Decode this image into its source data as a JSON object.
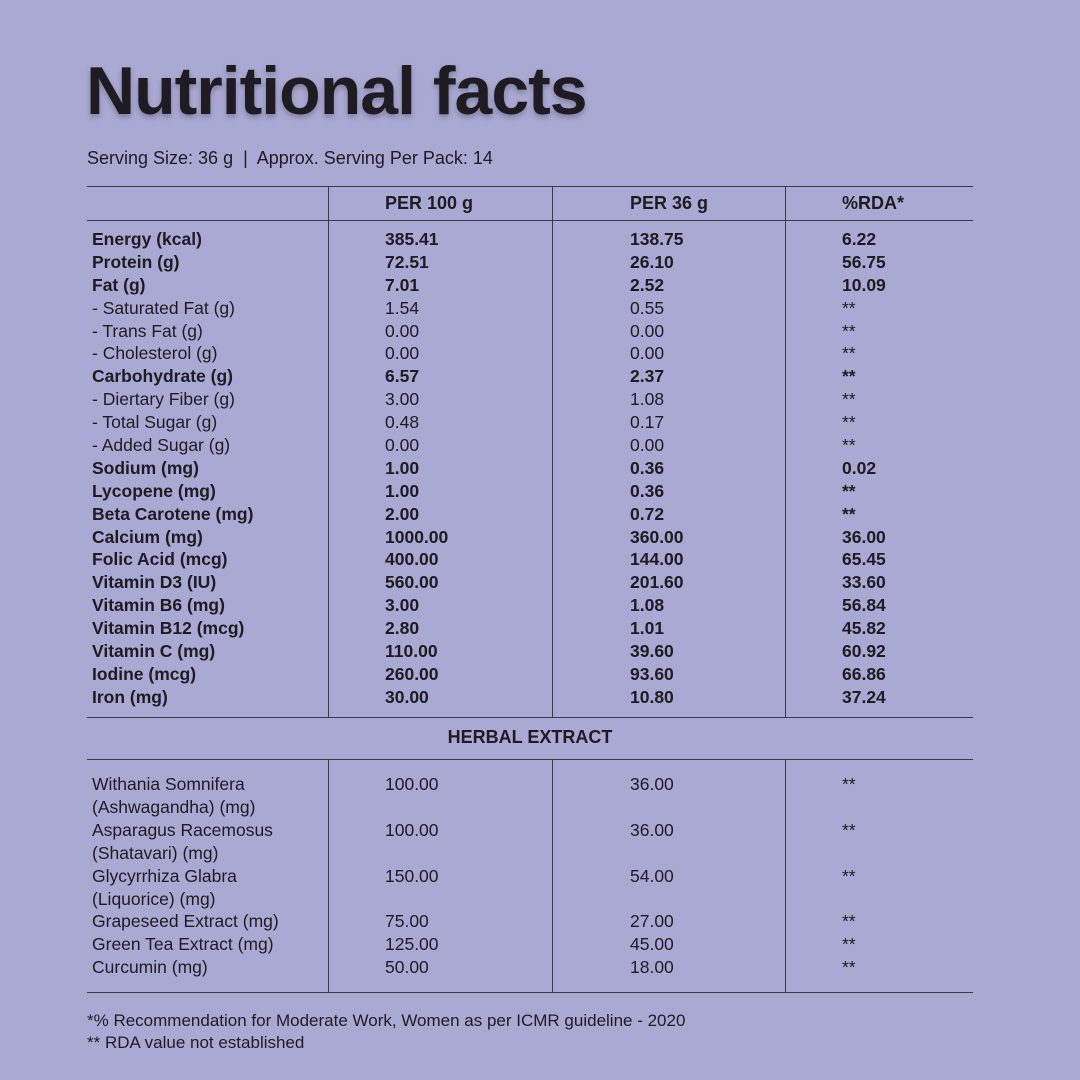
{
  "title": "Nutritional facts",
  "serving": "Serving Size: 36 g  |  Approx. Serving Per Pack: 14",
  "headers": [
    "PER 100 g",
    "PER 36 g",
    "%RDA*"
  ],
  "nutrients": [
    {
      "name": "Energy (kcal)",
      "per100": "385.41",
      "per36": "138.75",
      "rda": "6.22",
      "bold": true
    },
    {
      "name": "Protein (g)",
      "per100": "72.51",
      "per36": "26.10",
      "rda": "56.75",
      "bold": true
    },
    {
      "name": "Fat (g)",
      "per100": "7.01",
      "per36": "2.52",
      "rda": "10.09",
      "bold": true
    },
    {
      "name": "- Saturated Fat (g)",
      "per100": "1.54",
      "per36": "0.55",
      "rda": "**",
      "bold": false
    },
    {
      "name": "- Trans Fat (g)",
      "per100": "0.00",
      "per36": "0.00",
      "rda": "**",
      "bold": false
    },
    {
      "name": "- Cholesterol (g)",
      "per100": "0.00",
      "per36": "0.00",
      "rda": "**",
      "bold": false
    },
    {
      "name": "Carbohydrate (g)",
      "per100": "6.57",
      "per36": "2.37",
      "rda": "**",
      "bold": true
    },
    {
      "name": "- Diertary Fiber (g)",
      "per100": "3.00",
      "per36": "1.08",
      "rda": "**",
      "bold": false
    },
    {
      "name": "- Total Sugar (g)",
      "per100": "0.48",
      "per36": "0.17",
      "rda": "**",
      "bold": false
    },
    {
      "name": "- Added Sugar (g)",
      "per100": "0.00",
      "per36": "0.00",
      "rda": "**",
      "bold": false
    },
    {
      "name": "Sodium (mg)",
      "per100": "1.00",
      "per36": "0.36",
      "rda": "0.02",
      "bold": true
    },
    {
      "name": "Lycopene (mg)",
      "per100": "1.00",
      "per36": "0.36",
      "rda": "**",
      "bold": true
    },
    {
      "name": "Beta Carotene (mg)",
      "per100": "2.00",
      "per36": "0.72",
      "rda": "**",
      "bold": true
    },
    {
      "name": "Calcium (mg)",
      "per100": "1000.00",
      "per36": "360.00",
      "rda": "36.00",
      "bold": true
    },
    {
      "name": "Folic Acid (mcg)",
      "per100": "400.00",
      "per36": "144.00",
      "rda": "65.45",
      "bold": true
    },
    {
      "name": "Vitamin D3 (IU)",
      "per100": "560.00",
      "per36": "201.60",
      "rda": "33.60",
      "bold": true
    },
    {
      "name": "Vitamin B6 (mg)",
      "per100": "3.00",
      "per36": "1.08",
      "rda": "56.84",
      "bold": true
    },
    {
      "name": "Vitamin B12 (mcg)",
      "per100": "2.80",
      "per36": "1.01",
      "rda": "45.82",
      "bold": true
    },
    {
      "name": "Vitamin C (mg)",
      "per100": "110.00",
      "per36": "39.60",
      "rda": "60.92",
      "bold": true
    },
    {
      "name": "Iodine (mcg)",
      "per100": "260.00",
      "per36": "93.60",
      "rda": "66.86",
      "bold": true
    },
    {
      "name": "Iron (mg)",
      "per100": "30.00",
      "per36": "10.80",
      "rda": "37.24",
      "bold": true
    }
  ],
  "herbal_title": "HERBAL EXTRACT",
  "herbal": [
    {
      "name": "Withania Somnifera (Ashwagandha) (mg)",
      "per100": "100.00",
      "per36": "36.00",
      "rda": "**"
    },
    {
      "name": "Asparagus Racemosus (Shatavari) (mg)",
      "per100": "100.00",
      "per36": "36.00",
      "rda": "**"
    },
    {
      "name": "Glycyrrhiza Glabra (Liquorice) (mg)",
      "per100": "150.00",
      "per36": "54.00",
      "rda": "**"
    },
    {
      "name": "Grapeseed Extract (mg)",
      "per100": "75.00",
      "per36": "27.00",
      "rda": "**"
    },
    {
      "name": "Green Tea Extract (mg)",
      "per100": "125.00",
      "per36": "45.00",
      "rda": "**"
    },
    {
      "name": "Curcumin (mg)",
      "per100": "50.00",
      "per36": "18.00",
      "rda": "**"
    }
  ],
  "footnotes": [
    "*% Recommendation for Moderate Work, Women as per ICMR guideline - 2020",
    "** RDA value not established"
  ]
}
